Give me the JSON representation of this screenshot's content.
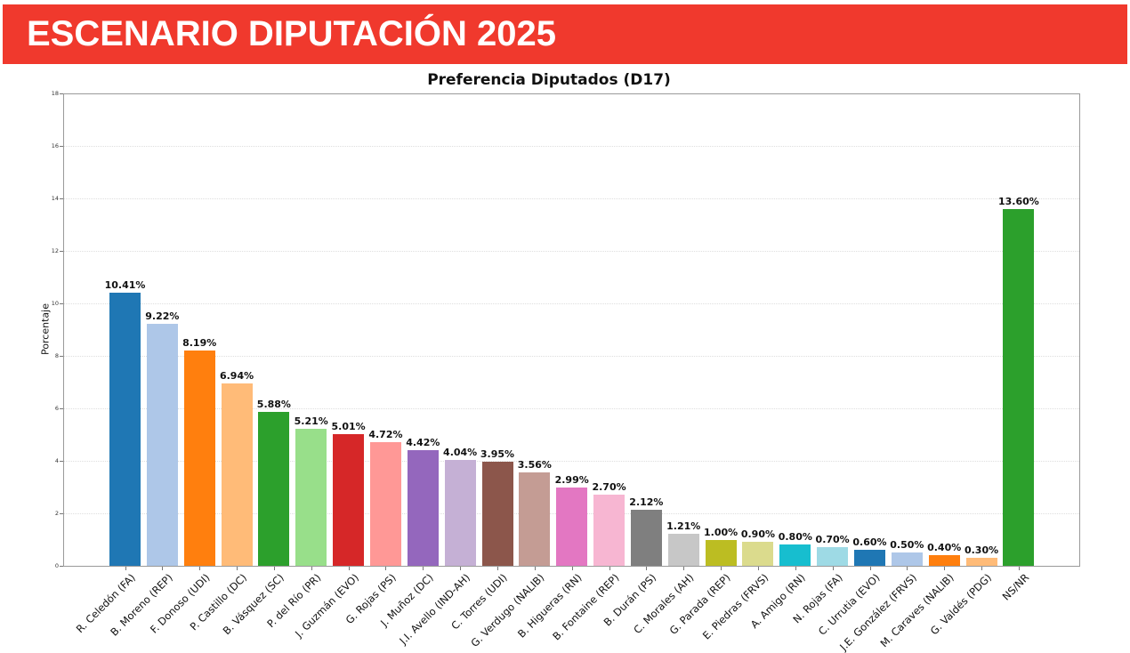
{
  "banner": {
    "title": "ESCENARIO DIPUTACIÓN 2025",
    "bg_color": "#f0392d",
    "text_color": "#ffffff"
  },
  "chart_data": {
    "type": "bar",
    "title": "Preferencia Diputados (D17)",
    "xlabel": "",
    "ylabel": "Porcentaje",
    "ylim": [
      0,
      18
    ],
    "yticks": [
      0,
      2,
      4,
      6,
      8,
      10,
      12,
      14,
      16,
      18
    ],
    "grid": "horizontal-dotted",
    "legend": "none",
    "categories": [
      "R. Celedón (FA)",
      "B. Moreno (REP)",
      "F. Donoso (UDI)",
      "P. Castillo (DC)",
      "B. Vásquez (SC)",
      "P. del Río (PR)",
      "J. Guzmán (EVO)",
      "G. Rojas (PS)",
      "J. Muñoz (DC)",
      "J.I. Avello (IND-AH)",
      "C. Torres (UDI)",
      "G. Verdugo (NALIB)",
      "B. Higueras (RN)",
      "B. Fontaine (REP)",
      "B. Durán (PS)",
      "C. Morales (AH)",
      "G. Parada (REP)",
      "E. Piedras (FRVS)",
      "A. Amigo (RN)",
      "N. Rojas (FA)",
      "C. Urrutia (EVO)",
      "J.E. González (FRVS)",
      "M. Caraves (NALIB)",
      "G. Valdés (PDG)",
      "NS/NR"
    ],
    "values": [
      10.41,
      9.22,
      8.19,
      6.94,
      5.88,
      5.21,
      5.01,
      4.72,
      4.42,
      4.04,
      3.95,
      3.56,
      2.99,
      2.7,
      2.12,
      1.21,
      1.0,
      0.9,
      0.8,
      0.7,
      0.6,
      0.5,
      0.4,
      0.3,
      13.6
    ],
    "value_labels": [
      "10.41%",
      "9.22%",
      "8.19%",
      "6.94%",
      "5.88%",
      "5.21%",
      "5.01%",
      "4.72%",
      "4.42%",
      "4.04%",
      "3.95%",
      "3.56%",
      "2.99%",
      "2.70%",
      "2.12%",
      "1.21%",
      "1.00%",
      "0.90%",
      "0.80%",
      "0.70%",
      "0.60%",
      "0.50%",
      "0.40%",
      "0.30%",
      "13.60%"
    ],
    "colors": [
      "#1f77b4",
      "#aec7e8",
      "#ff7f0e",
      "#ffbb78",
      "#2ca02c",
      "#98df8a",
      "#d62728",
      "#ff9896",
      "#9467bd",
      "#c5b0d5",
      "#8c564b",
      "#c49c94",
      "#e377c2",
      "#f7b6d2",
      "#7f7f7f",
      "#c7c7c7",
      "#bcbd22",
      "#dbdb8d",
      "#17becf",
      "#9edae5",
      "#1f77b4",
      "#aec7e8",
      "#ff7f0e",
      "#ffbb78",
      "#2ca02c"
    ]
  }
}
